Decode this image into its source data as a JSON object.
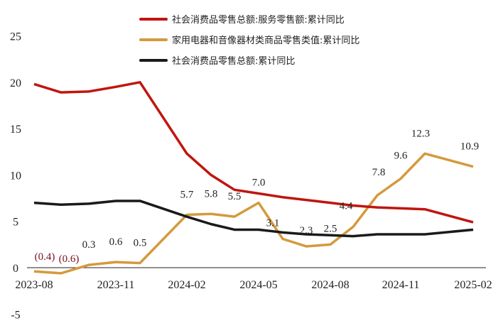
{
  "chart_data": {
    "type": "line",
    "title": "",
    "xlabel": "",
    "ylabel": "",
    "ylim": [
      -5,
      25
    ],
    "yticks": [
      "-5",
      "0",
      "5",
      "10",
      "15",
      "20",
      "25"
    ],
    "x": [
      "2023-08",
      "2023-09",
      "2023-10",
      "2023-11",
      "2023-12",
      "2024-02",
      "2024-03",
      "2024-04",
      "2024-05",
      "2024-06",
      "2024-07",
      "2024-08",
      "2024-09",
      "2024-10",
      "2024-11",
      "2024-12",
      "2025-02"
    ],
    "xtick_labels": [
      "2023-08",
      "2023-11",
      "2024-02",
      "2024-05",
      "2024-08",
      "2024-11",
      "2025-02"
    ],
    "grid": false,
    "legend": "top",
    "series": [
      {
        "name": "社会消费品零售总额:服务零售额:累计同比",
        "color": "#c0150f",
        "values": [
          19.8,
          18.9,
          19.0,
          19.5,
          20.0,
          12.3,
          10.0,
          8.4,
          8.0,
          7.6,
          7.3,
          7.0,
          6.7,
          6.5,
          6.4,
          6.3,
          4.9
        ]
      },
      {
        "name": "家用电器和音像器材类商品零售类值:累计同比",
        "color": "#d49a3c",
        "values": [
          -0.4,
          -0.6,
          0.3,
          0.6,
          0.5,
          5.7,
          5.8,
          5.5,
          7.0,
          3.1,
          2.3,
          2.5,
          4.4,
          7.8,
          9.6,
          12.3,
          10.9
        ],
        "data_labels": [
          "(0.4)",
          "(0.6)",
          "0.3",
          "0.6",
          "0.5",
          "5.7",
          "5.8",
          "5.5",
          "7.0",
          "3.1",
          "2.3",
          "2.5",
          "4.4",
          "7.8",
          "9.6",
          "12.3",
          "10.9"
        ],
        "negative_label_color": "#7a1020"
      },
      {
        "name": "社会消费品零售总额:累计同比",
        "color": "#1a1a1a",
        "values": [
          7.0,
          6.8,
          6.9,
          7.2,
          7.2,
          5.5,
          4.7,
          4.1,
          4.1,
          3.8,
          3.6,
          3.5,
          3.4,
          3.6,
          3.6,
          3.6,
          4.1
        ]
      }
    ]
  }
}
